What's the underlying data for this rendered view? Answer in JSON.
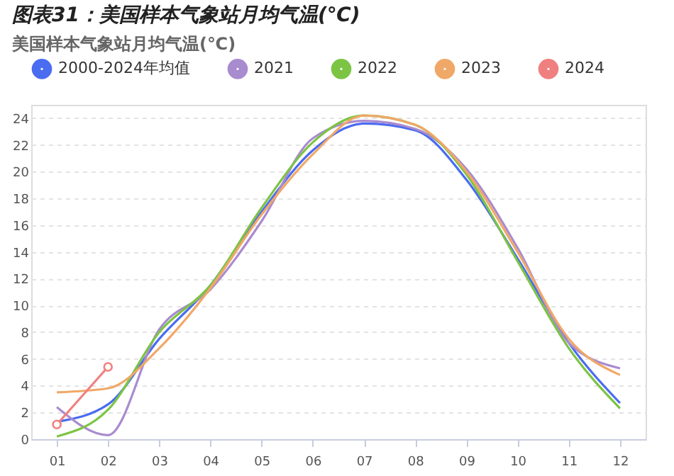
{
  "chart_data": {
    "type": "line",
    "title": "图表31：美国样本气象站月均气温(℃)",
    "subtitle": "美国样本气象站月均气温(℃)",
    "categories": [
      "01",
      "02",
      "03",
      "04",
      "05",
      "06",
      "07",
      "08",
      "09",
      "10",
      "11",
      "12"
    ],
    "series": [
      {
        "name": "2000-2024年均值",
        "color": "#4a6cf0",
        "marker": "none",
        "values": [
          1.3,
          2.6,
          7.5,
          11.5,
          17.0,
          21.6,
          23.6,
          23.1,
          19.4,
          13.5,
          7.2,
          2.7
        ]
      },
      {
        "name": "2021",
        "color": "#a98bd0",
        "marker": "none",
        "values": [
          2.4,
          0.3,
          8.2,
          11.2,
          16.3,
          22.5,
          23.8,
          23.2,
          20.2,
          14.3,
          7.2,
          5.3
        ]
      },
      {
        "name": "2022",
        "color": "#7cc444",
        "marker": "none",
        "values": [
          0.2,
          2.2,
          8.0,
          11.5,
          17.3,
          22.2,
          24.2,
          23.5,
          19.8,
          13.3,
          6.8,
          2.3
        ]
      },
      {
        "name": "2023",
        "color": "#f0a868",
        "marker": "none",
        "values": [
          3.5,
          3.8,
          6.8,
          11.3,
          16.8,
          21.3,
          24.2,
          23.5,
          20.0,
          14.0,
          7.5,
          4.8
        ]
      },
      {
        "name": "2024",
        "color": "#f08080",
        "marker": "circle",
        "values": [
          1.1,
          5.4,
          null,
          null,
          null,
          null,
          null,
          null,
          null,
          null,
          null,
          null
        ]
      }
    ],
    "ylim": [
      0,
      25
    ],
    "yticks": [
      0,
      2,
      4,
      6,
      8,
      10,
      12,
      14,
      16,
      18,
      20,
      22,
      24
    ],
    "grid": "y",
    "legend": "top left"
  }
}
